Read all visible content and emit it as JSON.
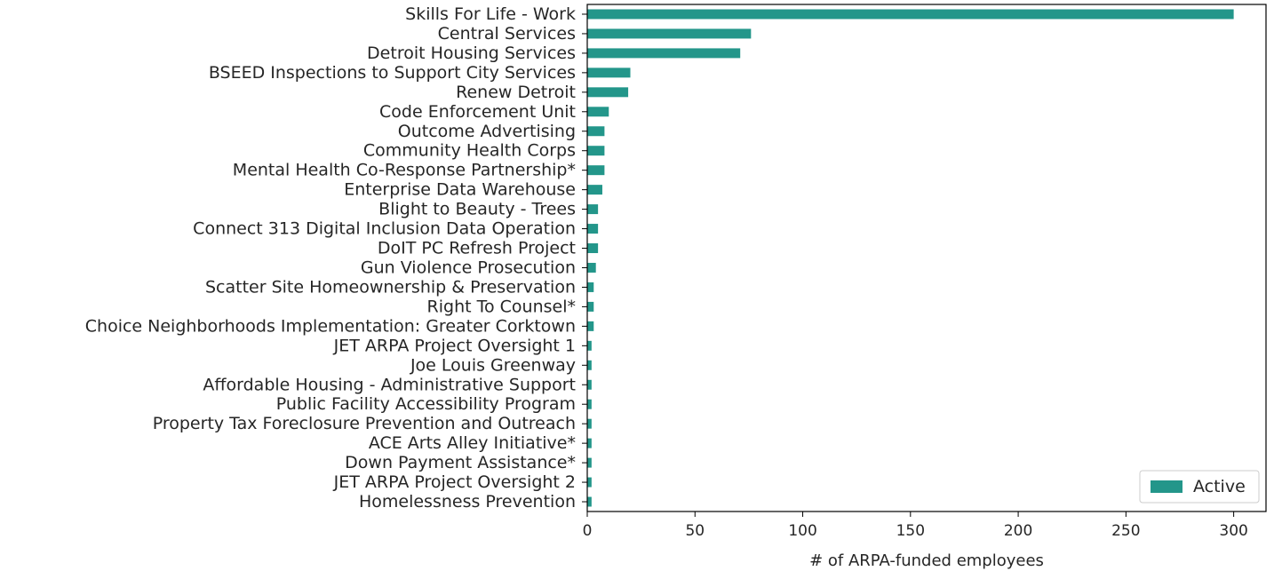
{
  "chart_data": {
    "type": "bar",
    "orientation": "horizontal",
    "categories": [
      "Skills For Life - Work",
      "Central Services",
      "Detroit Housing Services",
      "BSEED Inspections to Support City Services",
      "Renew Detroit",
      "Code Enforcement Unit",
      "Outcome Advertising",
      "Community Health Corps",
      "Mental Health Co-Response Partnership*",
      "Enterprise Data Warehouse",
      "Blight to Beauty - Trees",
      "Connect 313 Digital Inclusion Data Operation",
      "DoIT PC Refresh Project",
      "Gun Violence Prosecution",
      "Scatter Site Homeownership & Preservation",
      "Right To Counsel*",
      "Choice Neighborhoods Implementation: Greater Corktown",
      "JET ARPA Project Oversight 1",
      "Joe Louis Greenway",
      "Affordable Housing - Administrative Support",
      "Public Facility Accessibility Program",
      "Property Tax Foreclosure Prevention and Outreach",
      "ACE Arts Alley Initiative*",
      "Down Payment Assistance*",
      "JET ARPA Project Oversight 2",
      "Homelessness Prevention"
    ],
    "series": [
      {
        "name": "Active",
        "color": "#23968a",
        "values": [
          300,
          76,
          71,
          20,
          19,
          10,
          8,
          8,
          8,
          7,
          5,
          5,
          5,
          4,
          3,
          3,
          3,
          2,
          2,
          2,
          2,
          2,
          2,
          2,
          2,
          2
        ]
      }
    ],
    "xlabel": "# of ARPA-funded employees",
    "ylabel": "",
    "xlim": [
      0,
      315
    ],
    "xticks": [
      0,
      50,
      100,
      150,
      200,
      250,
      300
    ],
    "grid": false,
    "legend_position": "bottom-right"
  }
}
